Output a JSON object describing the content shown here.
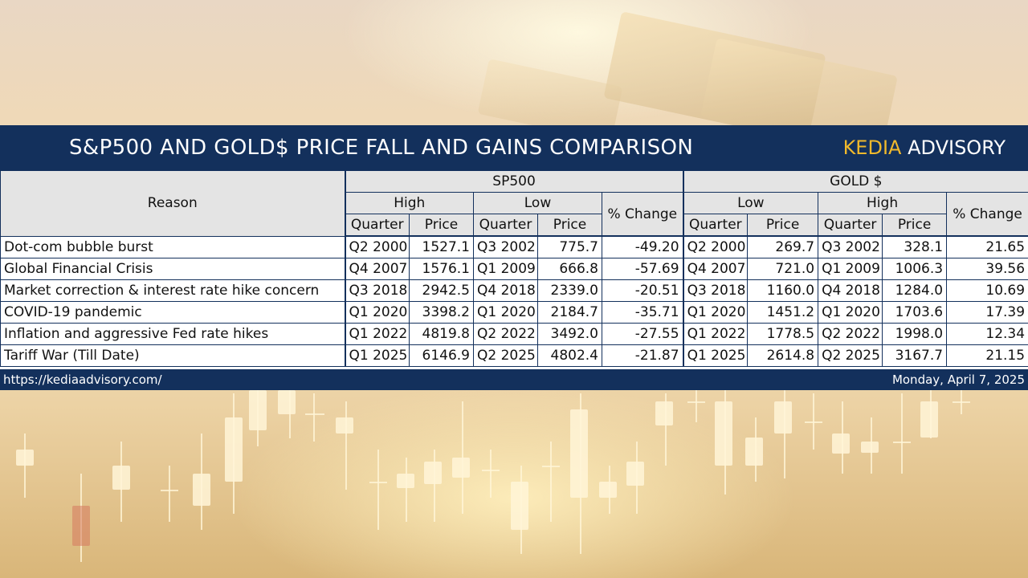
{
  "title": "S&P500 AND GOLD$ PRICE FALL AND GAINS COMPARISON",
  "brand": {
    "part1": "KEDIA",
    "part2": "ADVISORY"
  },
  "colors": {
    "navy": "#13305c",
    "gold": "#f0b92c",
    "header_bg": "#e4e4e4"
  },
  "headers": {
    "reason": "Reason",
    "sp500": "SP500",
    "gold": "GOLD $",
    "sp_high": "High",
    "sp_low": "Low",
    "gold_low": "Low",
    "gold_high": "High",
    "pct_change": "% Change",
    "quarter": "Quarter",
    "price": "Price"
  },
  "rows": [
    {
      "reason": "Dot-com bubble burst",
      "sp_high_q": "Q2 2000",
      "sp_high_p": "1527.1",
      "sp_low_q": "Q3 2002",
      "sp_low_p": "775.7",
      "sp_pct": "-49.20",
      "g_low_q": "Q2 2000",
      "g_low_p": "269.7",
      "g_high_q": "Q3 2002",
      "g_high_p": "328.1",
      "g_pct": "21.65"
    },
    {
      "reason": "Global Financial Crisis",
      "sp_high_q": "Q4 2007",
      "sp_high_p": "1576.1",
      "sp_low_q": "Q1 2009",
      "sp_low_p": "666.8",
      "sp_pct": "-57.69",
      "g_low_q": "Q4 2007",
      "g_low_p": "721.0",
      "g_high_q": "Q1 2009",
      "g_high_p": "1006.3",
      "g_pct": "39.56"
    },
    {
      "reason": "Market correction & interest rate hike concern",
      "sp_high_q": "Q3 2018",
      "sp_high_p": "2942.5",
      "sp_low_q": "Q4 2018",
      "sp_low_p": "2339.0",
      "sp_pct": "-20.51",
      "g_low_q": "Q3 2018",
      "g_low_p": "1160.0",
      "g_high_q": "Q4 2018",
      "g_high_p": "1284.0",
      "g_pct": "10.69"
    },
    {
      "reason": "COVID-19 pandemic",
      "sp_high_q": "Q1 2020",
      "sp_high_p": "3398.2",
      "sp_low_q": "Q1 2020",
      "sp_low_p": "2184.7",
      "sp_pct": "-35.71",
      "g_low_q": "Q1 2020",
      "g_low_p": "1451.2",
      "g_high_q": "Q1 2020",
      "g_high_p": "1703.6",
      "g_pct": "17.39"
    },
    {
      "reason": "Inflation and aggressive Fed rate hikes",
      "sp_high_q": "Q1 2022",
      "sp_high_p": "4819.8",
      "sp_low_q": "Q2 2022",
      "sp_low_p": "3492.0",
      "sp_pct": "-27.55",
      "g_low_q": "Q1 2022",
      "g_low_p": "1778.5",
      "g_high_q": "Q2 2022",
      "g_high_p": "1998.0",
      "g_pct": "12.34"
    },
    {
      "reason": "Tariff War (Till Date)",
      "sp_high_q": "Q1 2025",
      "sp_high_p": "6146.9",
      "sp_low_q": "Q2 2025",
      "sp_low_p": "4802.4",
      "sp_pct": "-21.87",
      "g_low_q": "Q1 2025",
      "g_low_p": "2614.8",
      "g_high_q": "Q2 2025",
      "g_high_p": "3167.7",
      "g_pct": "21.15"
    }
  ],
  "footer": {
    "url": "https://kediaadvisory.com/",
    "date": "Monday, April 7, 2025"
  }
}
